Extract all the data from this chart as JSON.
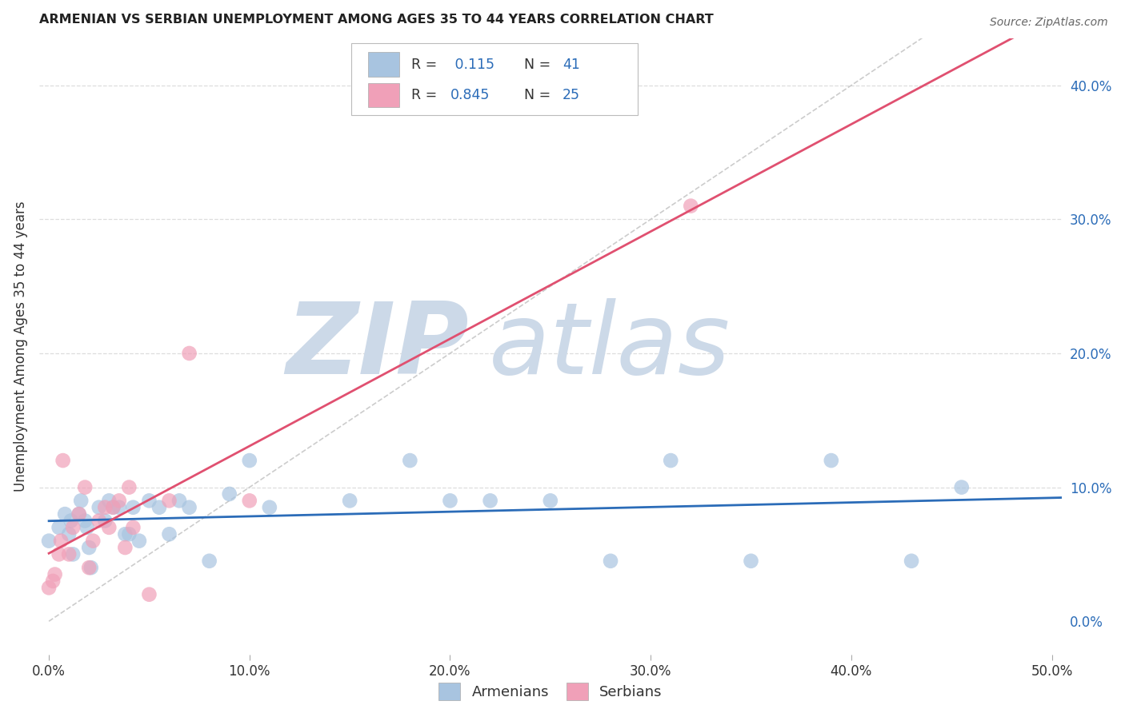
{
  "title": "ARMENIAN VS SERBIAN UNEMPLOYMENT AMONG AGES 35 TO 44 YEARS CORRELATION CHART",
  "source": "Source: ZipAtlas.com",
  "ylabel": "Unemployment Among Ages 35 to 44 years",
  "xlim": [
    -0.005,
    0.505
  ],
  "ylim": [
    -0.025,
    0.435
  ],
  "xticks": [
    0.0,
    0.1,
    0.2,
    0.3,
    0.4,
    0.5
  ],
  "yticks_right": [
    0.0,
    0.1,
    0.2,
    0.3,
    0.4
  ],
  "legend_R_armenian": "0.115",
  "legend_N_armenian": "41",
  "legend_R_serbian": "0.845",
  "legend_N_serbian": "25",
  "armenian_color": "#a8c4e0",
  "serbian_color": "#f0a0b8",
  "armenian_line_color": "#2b6cb8",
  "serbian_line_color": "#e05070",
  "diagonal_color": "#cccccc",
  "grid_color": "#dddddd",
  "background_color": "#ffffff",
  "watermark_color": "#ccd9e8",
  "armenian_x": [
    0.0,
    0.005,
    0.008,
    0.01,
    0.011,
    0.012,
    0.015,
    0.016,
    0.018,
    0.019,
    0.02,
    0.021,
    0.025,
    0.028,
    0.03,
    0.032,
    0.035,
    0.038,
    0.04,
    0.042,
    0.045,
    0.05,
    0.055,
    0.06,
    0.065,
    0.07,
    0.08,
    0.09,
    0.1,
    0.11,
    0.15,
    0.18,
    0.2,
    0.22,
    0.25,
    0.28,
    0.31,
    0.35,
    0.39,
    0.43,
    0.455
  ],
  "armenian_y": [
    0.06,
    0.07,
    0.08,
    0.065,
    0.075,
    0.05,
    0.08,
    0.09,
    0.075,
    0.07,
    0.055,
    0.04,
    0.085,
    0.075,
    0.09,
    0.085,
    0.085,
    0.065,
    0.065,
    0.085,
    0.06,
    0.09,
    0.085,
    0.065,
    0.09,
    0.085,
    0.045,
    0.095,
    0.12,
    0.085,
    0.09,
    0.12,
    0.09,
    0.09,
    0.09,
    0.045,
    0.12,
    0.045,
    0.12,
    0.045,
    0.1
  ],
  "serbian_x": [
    0.0,
    0.002,
    0.003,
    0.005,
    0.006,
    0.007,
    0.01,
    0.012,
    0.015,
    0.018,
    0.02,
    0.022,
    0.025,
    0.028,
    0.03,
    0.032,
    0.035,
    0.038,
    0.04,
    0.042,
    0.05,
    0.06,
    0.07,
    0.1,
    0.32
  ],
  "serbian_y": [
    0.025,
    0.03,
    0.035,
    0.05,
    0.06,
    0.12,
    0.05,
    0.07,
    0.08,
    0.1,
    0.04,
    0.06,
    0.075,
    0.085,
    0.07,
    0.085,
    0.09,
    0.055,
    0.1,
    0.07,
    0.02,
    0.09,
    0.2,
    0.09,
    0.31
  ]
}
